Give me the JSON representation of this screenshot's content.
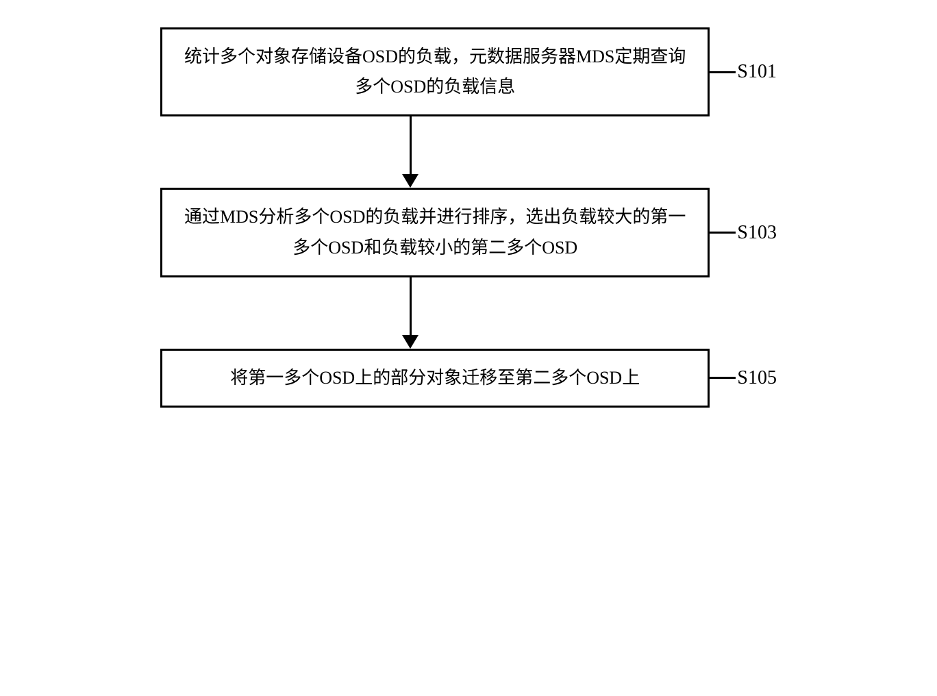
{
  "flow": {
    "steps": [
      {
        "id": "S101",
        "text": "统计多个对象存储设备OSD的负载，元数据服务器MDS定期查询多个OSD的负载信息",
        "arrow_after": true,
        "arrow_height": 85
      },
      {
        "id": "S103",
        "text": "通过MDS分析多个OSD的负载并进行排序，选出负载较大的第一多个OSD和负载较小的第二多个OSD",
        "arrow_after": true,
        "arrow_height": 85
      },
      {
        "id": "S105",
        "text": "将第一多个OSD上的部分对象迁移至第二多个OSD上",
        "arrow_after": false,
        "arrow_height": 0
      }
    ],
    "style": {
      "box_border_color": "#000000",
      "box_border_width": 3,
      "box_font_size": 26,
      "label_font_size": 28,
      "arrow_color": "#000000",
      "background": "#ffffff",
      "connector_width": 38,
      "arrowhead_width": 24,
      "arrowhead_height": 20
    }
  }
}
